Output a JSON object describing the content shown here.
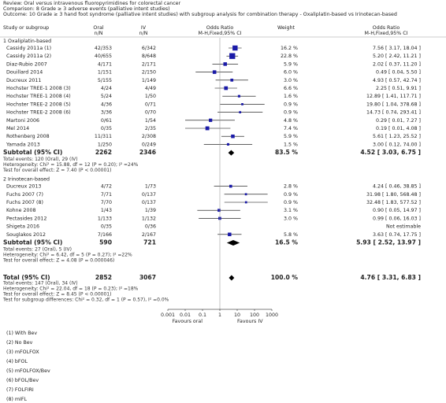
{
  "chart_data": {
    "type": "forest",
    "review": "Review:  Oral versus intravenous fluoropyrimidines for colorectal cancer",
    "comparison": "Comparison:  8 Grade ≥ 3 adverse events (palliative intent studies)",
    "outcome": "Outcome:  10 Grade ≥ 3 hand foot syndrome (palliative intent studies) with subgroup analysis for combination therapy - Oxaliplatin-based vs Irinotecan-based",
    "columns": {
      "study": "Study or subgroup",
      "oral": "Oral",
      "oral_sub": "n/N",
      "iv": "IV",
      "iv_sub": "n/N",
      "plot": "Odds Ratio",
      "plot_sub": "M-H,Fixed,95% CI",
      "weight": "Weight",
      "or": "Odds Ratio",
      "or_sub": "M-H,Fixed,95% CI"
    },
    "groups": [
      {
        "title": "1 Oxaliplatin-based",
        "studies": [
          {
            "name": "Cassidy 2011a (1)",
            "oral": "42/353",
            "iv": "6/342",
            "weight": "16.2 %",
            "or_label": "7.56 [ 3.17, 18.04 ]",
            "or": 7.56,
            "lo": 3.17,
            "hi": 18.04,
            "w": 16.2
          },
          {
            "name": "Cassidy 2011a (2)",
            "oral": "40/655",
            "iv": "8/648",
            "weight": "22.8 %",
            "or_label": "5.20 [ 2.42, 11.21 ]",
            "or": 5.2,
            "lo": 2.42,
            "hi": 11.21,
            "w": 22.8
          },
          {
            "name": "Diaz-Rubio 2007",
            "oral": "4/171",
            "iv": "2/171",
            "weight": "5.9 %",
            "or_label": "2.02 [ 0.37, 11.20 ]",
            "or": 2.02,
            "lo": 0.37,
            "hi": 11.2,
            "w": 5.9
          },
          {
            "name": "Douillard 2014",
            "oral": "1/151",
            "iv": "2/150",
            "weight": "6.0 %",
            "or_label": "0.49 [ 0.04, 5.50 ]",
            "or": 0.49,
            "lo": 0.04,
            "hi": 5.5,
            "w": 6.0
          },
          {
            "name": "Ducreux 2011",
            "oral": "5/155",
            "iv": "1/149",
            "weight": "3.0 %",
            "or_label": "4.93 [ 0.57, 42.74 ]",
            "or": 4.93,
            "lo": 0.57,
            "hi": 42.74,
            "w": 3.0
          },
          {
            "name": "Hochster TREE-1 2008 (3)",
            "oral": "4/24",
            "iv": "4/49",
            "weight": "6.6 %",
            "or_label": "2.25 [ 0.51, 9.91 ]",
            "or": 2.25,
            "lo": 0.51,
            "hi": 9.91,
            "w": 6.6
          },
          {
            "name": "Hochster TREE-1 2008 (4)",
            "oral": "5/24",
            "iv": "1/50",
            "weight": "1.6 %",
            "or_label": "12.89 [ 1.41, 117.71 ]",
            "or": 12.89,
            "lo": 1.41,
            "hi": 117.71,
            "w": 1.6
          },
          {
            "name": "Hochster TREE-2 2008 (5)",
            "oral": "4/36",
            "iv": "0/71",
            "weight": "0.9 %",
            "or_label": "19.80 [ 1.04, 378.68 ]",
            "or": 19.8,
            "lo": 1.04,
            "hi": 378.68,
            "w": 0.9
          },
          {
            "name": "Hochster TREE-2 2008 (6)",
            "oral": "3/36",
            "iv": "0/70",
            "weight": "0.9 %",
            "or_label": "14.73 [ 0.74, 293.41 ]",
            "or": 14.73,
            "lo": 0.74,
            "hi": 293.41,
            "w": 0.9
          },
          {
            "name": "Martoni 2006",
            "oral": "0/61",
            "iv": "1/54",
            "weight": "4.8 %",
            "or_label": "0.29 [ 0.01, 7.27 ]",
            "or": 0.29,
            "lo": 0.01,
            "hi": 7.27,
            "w": 4.8
          },
          {
            "name": "Mel 2014",
            "oral": "0/35",
            "iv": "2/35",
            "weight": "7.4 %",
            "or_label": "0.19 [ 0.01, 4.08 ]",
            "or": 0.19,
            "lo": 0.01,
            "hi": 4.08,
            "w": 7.4
          },
          {
            "name": "Rothenberg 2008",
            "oral": "11/311",
            "iv": "2/308",
            "weight": "5.9 %",
            "or_label": "5.61 [ 1.23, 25.52 ]",
            "or": 5.61,
            "lo": 1.23,
            "hi": 25.52,
            "w": 5.9
          },
          {
            "name": "Yamada 2013",
            "oral": "1/250",
            "iv": "0/249",
            "weight": "1.5 %",
            "or_label": "3.00 [ 0.12, 74.00 ]",
            "or": 3.0,
            "lo": 0.12,
            "hi": 74.0,
            "w": 1.5
          }
        ],
        "subtotal": {
          "name": "Subtotal (95% CI)",
          "oral": 2262,
          "iv": 2346,
          "weight": "83.5 %",
          "or_label": "4.52 [ 3.03, 6.75 ]",
          "or": 4.52,
          "lo": 3.03,
          "hi": 6.75
        },
        "notes": [
          "Total events: 120 (Oral), 29 (IV)",
          "Heterogeneity: Chi² = 15.88, df = 12 (P = 0.20); I² =24%",
          "Test for overall effect: Z = 7.40 (P < 0.00001)"
        ]
      },
      {
        "title": "2 Irinotecan-based",
        "studies": [
          {
            "name": "Ducreux 2013",
            "oral": "4/72",
            "iv": "1/73",
            "weight": "2.8 %",
            "or_label": "4.24 [ 0.46, 38.85 ]",
            "or": 4.24,
            "lo": 0.46,
            "hi": 38.85,
            "w": 2.8
          },
          {
            "name": "Fuchs 2007 (7)",
            "oral": "7/71",
            "iv": "0/137",
            "weight": "0.9 %",
            "or_label": "31.98 [ 1.80, 568.48 ]",
            "or": 31.98,
            "lo": 1.8,
            "hi": 568.48,
            "w": 0.9
          },
          {
            "name": "Fuchs 2007 (8)",
            "oral": "7/70",
            "iv": "0/137",
            "weight": "0.9 %",
            "or_label": "32.48 [ 1.83, 577.52 ]",
            "or": 32.48,
            "lo": 1.83,
            "hi": 577.52,
            "w": 0.9
          },
          {
            "name": "Kohne 2008",
            "oral": "1/43",
            "iv": "1/39",
            "weight": "3.1 %",
            "or_label": "0.90 [ 0.05, 14.97 ]",
            "or": 0.9,
            "lo": 0.05,
            "hi": 14.97,
            "w": 3.1
          },
          {
            "name": "Pectasides 2012",
            "oral": "1/133",
            "iv": "1/132",
            "weight": "3.0 %",
            "or_label": "0.99 [ 0.06, 16.03 ]",
            "or": 0.99,
            "lo": 0.06,
            "hi": 16.03,
            "w": 3.0
          },
          {
            "name": "Shigeta 2016",
            "oral": "0/35",
            "iv": "0/36",
            "weight": null,
            "or_label": "Not estimable",
            "or": null,
            "lo": null,
            "hi": null,
            "w": null
          },
          {
            "name": "Souglakos 2012",
            "oral": "7/166",
            "iv": "2/167",
            "weight": "5.8 %",
            "or_label": "3.63 [ 0.74, 17.75 ]",
            "or": 3.63,
            "lo": 0.74,
            "hi": 17.75,
            "w": 5.8
          }
        ],
        "subtotal": {
          "name": "Subtotal (95% CI)",
          "oral": 590,
          "iv": 721,
          "weight": "16.5 %",
          "or_label": "5.93 [ 2.52, 13.97 ]",
          "or": 5.93,
          "lo": 2.52,
          "hi": 13.97
        },
        "notes": [
          "Total events: 27 (Oral), 5 (IV)",
          "Heterogeneity: Chi² = 6.42, df = 5 (P = 0.27); I² =22%",
          "Test for overall effect: Z = 4.08 (P = 0.000046)"
        ]
      }
    ],
    "total": {
      "name": "Total (95% CI)",
      "oral": 2852,
      "iv": 3067,
      "weight": "100.0 %",
      "or_label": "4.76 [ 3.31, 6.83 ]",
      "or": 4.76,
      "lo": 3.31,
      "hi": 6.83
    },
    "total_notes": [
      "Total events: 147 (Oral), 34 (IV)",
      "Heterogeneity: Chi² = 22.04, df = 18 (P = 0.23); I² =18%",
      "Test for overall effect: Z = 8.45 (P < 0.00001)",
      "Test for subgroup differences: Chi² = 0.32, df = 1 (P = 0.57), I² =0.0%"
    ],
    "xscale": "log",
    "xlim": [
      0.001,
      1000
    ],
    "xticks": [
      0.001,
      0.01,
      0.1,
      1,
      10,
      100,
      1000
    ],
    "favours_left": "Favours oral",
    "favours_right": "Favours IV",
    "color": "#1a1aa8",
    "footnotes": [
      "(1) With Bev",
      "(2) No Bev",
      "(3) mFOLFOX",
      "(4) bFOL",
      "(5) mFOLFOX/Bev",
      "(6) bFOL/Bev",
      "(7) FOLFIRI",
      "(8) mIFL"
    ]
  }
}
